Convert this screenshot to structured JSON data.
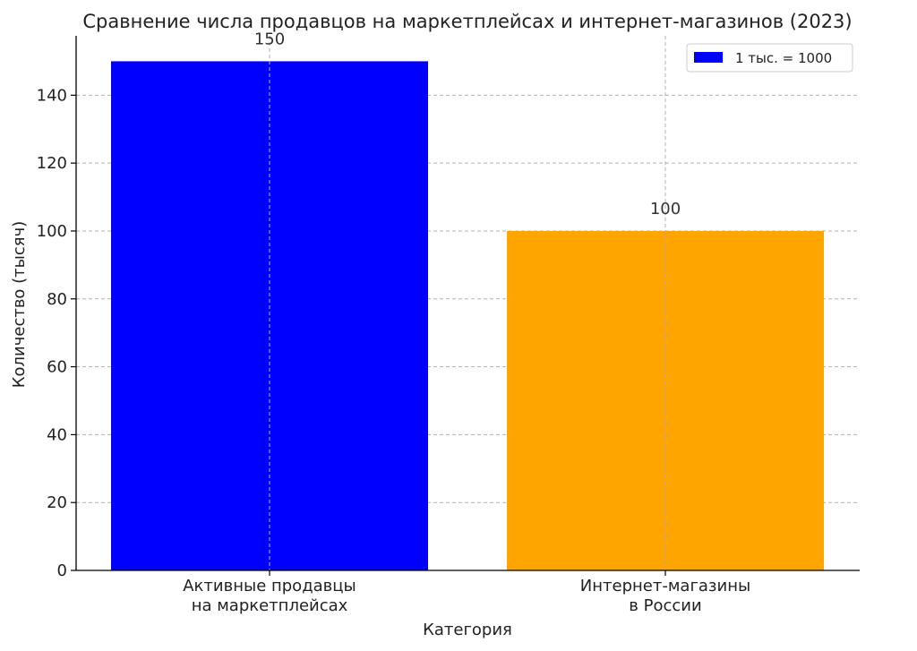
{
  "chart_data": {
    "type": "bar",
    "title": "Сравнение числа продавцов на маркетплейсах и интернет-магазинов (2023)",
    "xlabel": "Категория",
    "ylabel": "Количество (тысяч)",
    "categories": [
      [
        "Активные продавцы",
        "на маркетплейсах"
      ],
      [
        "Интернет-магазины",
        "в России"
      ]
    ],
    "values": [
      150,
      100
    ],
    "value_labels": [
      "150",
      "100"
    ],
    "bar_colors": [
      "#0000ff",
      "#ffa500"
    ],
    "ylim": [
      0,
      157.5
    ],
    "yticks": [
      0,
      20,
      40,
      60,
      80,
      100,
      120,
      140
    ],
    "grid": true,
    "legend": {
      "position": "top-right",
      "entries": [
        {
          "label": "1 тыс. = 1000",
          "color": "#0000ff"
        }
      ]
    }
  }
}
